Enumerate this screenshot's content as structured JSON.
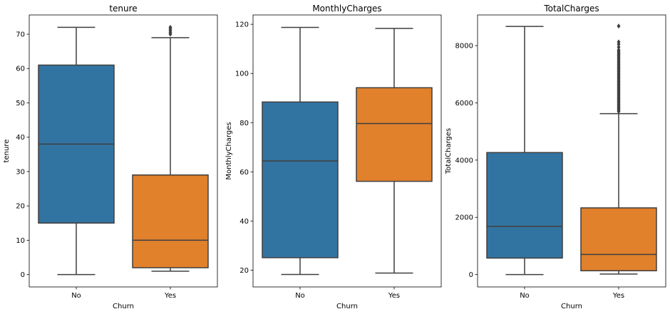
{
  "chart_data": [
    {
      "type": "box",
      "title": "tenure",
      "xlabel": "Churn",
      "ylabel": "tenure",
      "ylim": [
        -3.6,
        75.6
      ],
      "yticks": [
        0,
        10,
        20,
        30,
        40,
        50,
        60,
        70
      ],
      "categories": [
        "No",
        "Yes"
      ],
      "boxes": [
        {
          "category": "No",
          "color": "#3274a1",
          "whislo": 0,
          "q1": 15,
          "med": 38,
          "q3": 61,
          "whishi": 72,
          "fliers": []
        },
        {
          "category": "Yes",
          "color": "#e1812c",
          "whislo": 1,
          "q1": 2,
          "med": 10,
          "q3": 29,
          "whishi": 69,
          "fliers": [
            70,
            70.5,
            71,
            71.5,
            72
          ]
        }
      ]
    },
    {
      "type": "box",
      "title": "MonthlyCharges",
      "xlabel": "Churn",
      "ylabel": "MonthlyCharges",
      "ylim": [
        13.2,
        123.8
      ],
      "yticks": [
        20,
        40,
        60,
        80,
        100,
        120
      ],
      "categories": [
        "No",
        "Yes"
      ],
      "boxes": [
        {
          "category": "No",
          "color": "#3274a1",
          "whislo": 18.25,
          "q1": 25.1,
          "med": 64.4,
          "q3": 88.4,
          "whishi": 118.75,
          "fliers": []
        },
        {
          "category": "Yes",
          "color": "#e1812c",
          "whislo": 18.85,
          "q1": 56.15,
          "med": 79.65,
          "q3": 94.2,
          "whishi": 118.35,
          "fliers": []
        }
      ]
    },
    {
      "type": "box",
      "title": "TotalCharges",
      "xlabel": "Churn",
      "ylabel": "TotalCharges",
      "ylim": [
        -432,
        9072
      ],
      "yticks": [
        0,
        2000,
        4000,
        6000,
        8000
      ],
      "categories": [
        "No",
        "Yes"
      ],
      "boxes": [
        {
          "category": "No",
          "color": "#3274a1",
          "whislo": 0,
          "q1": 577,
          "med": 1683,
          "q3": 4264,
          "whishi": 8672,
          "fliers": []
        },
        {
          "category": "Yes",
          "color": "#e1812c",
          "whislo": 19,
          "q1": 134,
          "med": 704,
          "q3": 2331,
          "whishi": 5624,
          "fliers": [
            5700,
            5750,
            5800,
            5850,
            5900,
            5950,
            6000,
            6050,
            6100,
            6150,
            6200,
            6250,
            6300,
            6350,
            6400,
            6450,
            6500,
            6550,
            6600,
            6650,
            6700,
            6750,
            6800,
            6850,
            6900,
            6950,
            7000,
            7050,
            7100,
            7150,
            7200,
            7250,
            7300,
            7350,
            7400,
            7450,
            7500,
            7550,
            7600,
            7650,
            7700,
            7750,
            7800,
            7850,
            7950,
            8050,
            8130,
            8684
          ]
        }
      ]
    }
  ]
}
